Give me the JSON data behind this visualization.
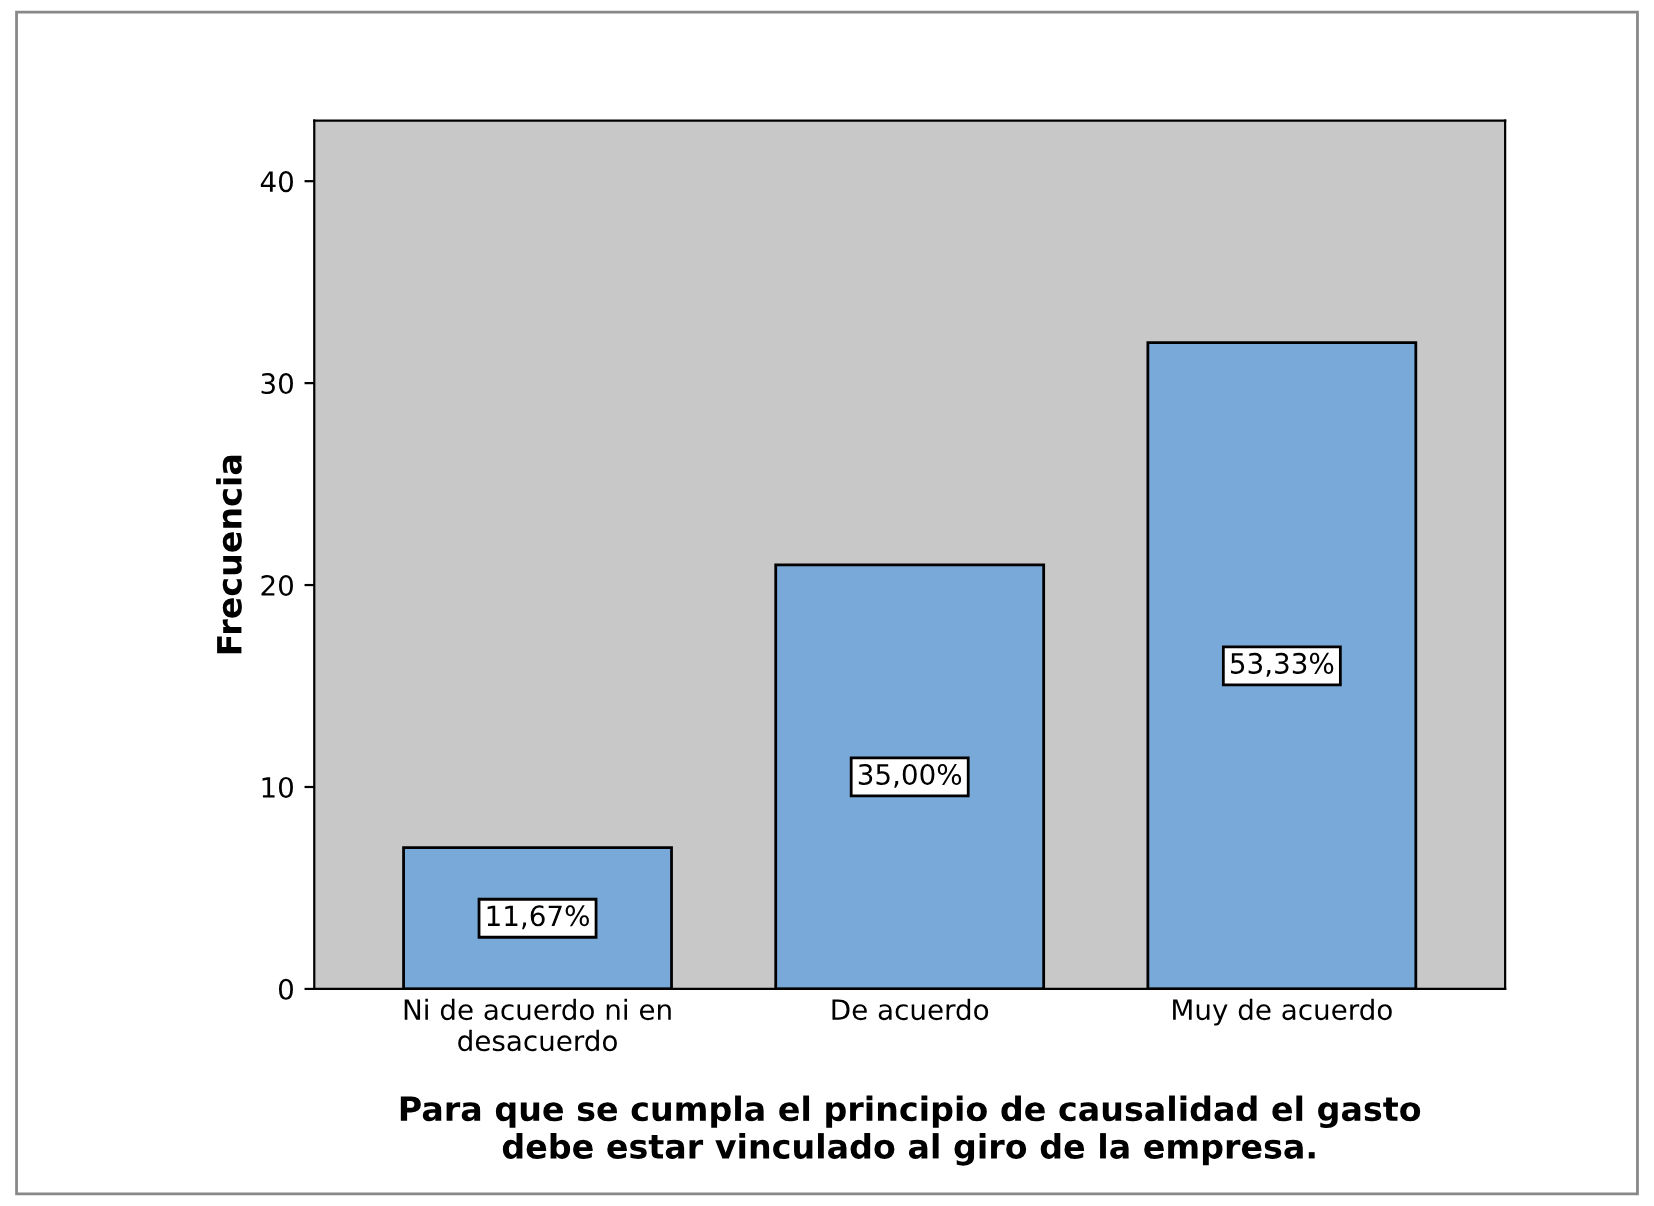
{
  "chart_data": {
    "type": "bar",
    "categories": [
      "Ni de acuerdo ni en\ndesacuerdo",
      "De acuerdo",
      "Muy de acuerdo"
    ],
    "values": [
      7,
      21,
      32
    ],
    "annotations": [
      "11,67%",
      "35,00%",
      "53,33%"
    ],
    "color": "#79a9d9",
    "ylim": [
      0,
      43
    ],
    "yticks": [
      0,
      10,
      20,
      30,
      40
    ],
    "ylabel": "Frecuencia",
    "xlabel": "Para que se cumpla el principio de causalidad el gasto\ndebe estar vinculado al giro de la empresa.",
    "grid": false
  }
}
